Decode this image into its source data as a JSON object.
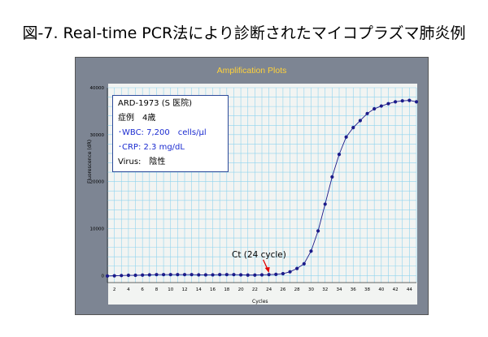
{
  "slide": {
    "title": "図-7. Real-time PCR法により診断されたマイコプラズマ肺炎例"
  },
  "info_box": {
    "line1": "ARD-1973 (S 医院)",
    "line2": "症例　4歳",
    "line3": "･WBC: 7,200　cells/μl",
    "line4": "･CRP: 2.3 mg/dL",
    "line5": "Virus:　陰性"
  },
  "annotation": {
    "ct_label": "Ct (24 cycle)",
    "ct_cycle": 24
  },
  "colors": {
    "panel_bg": "#7d8593",
    "panel_title": "#ffd23a",
    "plot_bg": "#f2f4f2",
    "grid": "#8fd3ee",
    "series": "#1b1b8a",
    "arrow": "#e00000",
    "info_blue": "#1b2bd0"
  },
  "chart_data": {
    "type": "line",
    "title": "Amplification Plots",
    "xlabel": "Cycles",
    "ylabel": "Fluorescence (dR)",
    "xlim": [
      1,
      45
    ],
    "ylim": [
      -1500,
      40000
    ],
    "x_ticks": [
      2,
      4,
      6,
      8,
      10,
      12,
      14,
      16,
      18,
      20,
      22,
      24,
      26,
      28,
      30,
      32,
      34,
      36,
      38,
      40,
      42,
      44
    ],
    "y_ticks": [
      0,
      10000,
      20000,
      30000,
      40000
    ],
    "grid": true,
    "series": [
      {
        "x": [
          1,
          2,
          3,
          4,
          5,
          6,
          7,
          8,
          9,
          10,
          11,
          12,
          13,
          14,
          15,
          16,
          17,
          18,
          19,
          20,
          21,
          22,
          23,
          24,
          25,
          26,
          27,
          28,
          29,
          30,
          31,
          32,
          33,
          34,
          35,
          36,
          37,
          38,
          39,
          40,
          41,
          42,
          43,
          44,
          45
        ],
        "values": [
          -100,
          -50,
          0,
          50,
          50,
          100,
          150,
          200,
          200,
          200,
          200,
          200,
          200,
          150,
          150,
          150,
          200,
          200,
          200,
          150,
          100,
          100,
          150,
          200,
          250,
          400,
          800,
          1500,
          2500,
          5200,
          9500,
          15200,
          21000,
          25800,
          29500,
          31500,
          33000,
          34500,
          35500,
          36100,
          36600,
          37000,
          37200,
          37300,
          37000
        ]
      }
    ]
  }
}
